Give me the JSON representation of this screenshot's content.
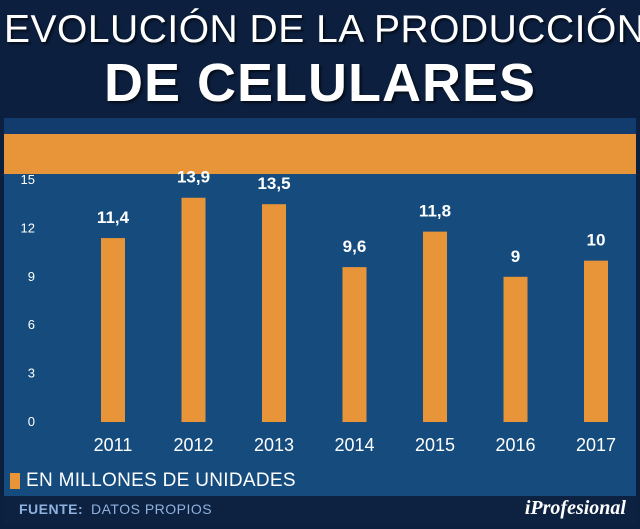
{
  "header": {
    "title_line1": "EVOLUCIÓN DE LA PRODUCCIÓN",
    "title_line2": "DE CELULARES"
  },
  "chart_data": {
    "type": "bar",
    "title": "EVOLUCIÓN DE LA PRODUCCIÓN DE CELULARES",
    "categories": [
      "2011",
      "2012",
      "2013",
      "2014",
      "2015",
      "2016",
      "2017"
    ],
    "values": [
      11.4,
      13.9,
      13.5,
      9.6,
      11.8,
      9,
      10
    ],
    "value_labels": [
      "11,4",
      "13,9",
      "13,5",
      "9,6",
      "11,8",
      "9",
      "10"
    ],
    "y_ticks": [
      "0",
      "3",
      "6",
      "9",
      "12",
      "15"
    ],
    "ylim": [
      0,
      15
    ],
    "xlabel": "",
    "ylabel": "",
    "legend": "EN MILLONES DE UNIDADES",
    "legend_position": "bottom-left",
    "bar_color": "#e8953a",
    "grid": false
  },
  "footer": {
    "source_label": "FUENTE:",
    "source_value": "DATOS PROPIOS",
    "brand": "iProfesional"
  },
  "colors": {
    "background": "#0b1f3f",
    "plot_background": "#154c7d",
    "accent": "#e8953a",
    "text": "#ffffff"
  }
}
